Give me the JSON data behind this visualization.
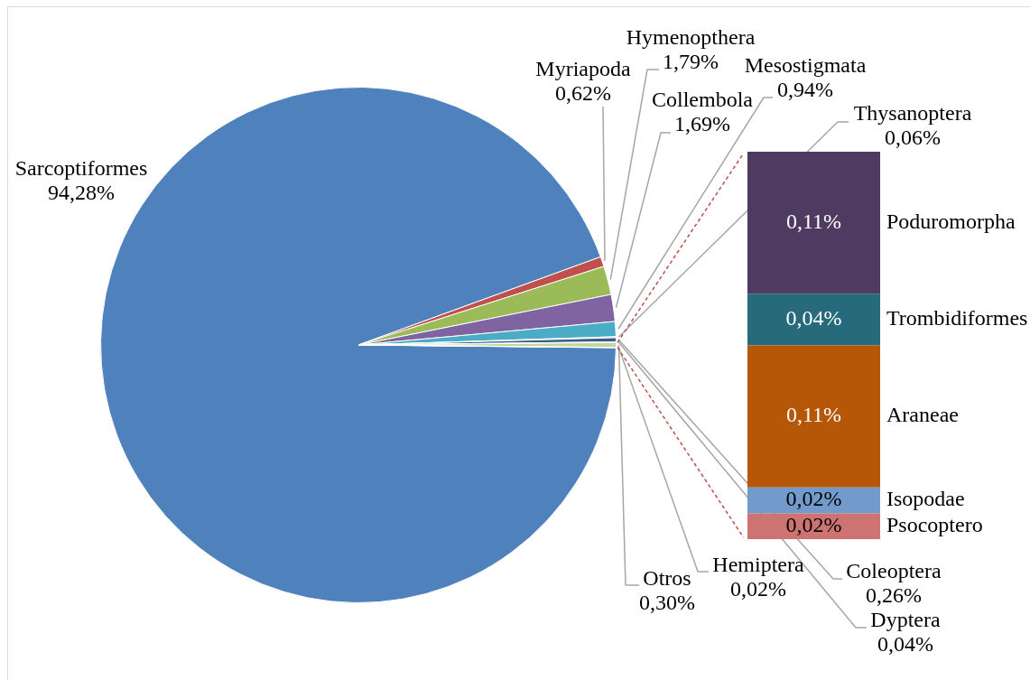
{
  "chart_data": [
    {
      "type": "pie",
      "categories": [
        "Sarcoptiformes",
        "Myriapoda",
        "Hymenopthera",
        "Collembola",
        "Mesostigmata",
        "Thysanoptera",
        "Coleoptera",
        "Dyptera",
        "Otros",
        "Hemiptera"
      ],
      "values": [
        94.28,
        0.62,
        1.79,
        1.69,
        0.94,
        0.06,
        0.26,
        0.04,
        0.3,
        0.02
      ],
      "colors": [
        "#4f81bd",
        "#c0504d",
        "#9bbb59",
        "#8064a2",
        "#4bacc6",
        "#f79646",
        "#385d8a",
        "#8c3836",
        "#c3d69b",
        "#71893f"
      ],
      "value_labels": [
        "94,28%",
        "0,62%",
        "1,79%",
        "1,69%",
        "0,94%",
        "0,06%",
        "0,26%",
        "0,04%",
        "0,30%",
        "0,02%"
      ]
    },
    {
      "type": "bar",
      "stacked": true,
      "categories": [
        null
      ],
      "tick_labels": false,
      "series": [
        {
          "name": "Psocoptero",
          "color": "#cd7371",
          "values": [
            0.02
          ],
          "value_labels": [
            "0,02%"
          ]
        },
        {
          "name": "Isopodae",
          "color": "#729aca",
          "values": [
            0.02
          ],
          "value_labels": [
            "0,02%"
          ]
        },
        {
          "name": "Araneae",
          "color": "#b65708",
          "values": [
            0.11
          ],
          "value_labels": [
            "0,11%"
          ]
        },
        {
          "name": "Trombidiformes",
          "color": "#276a7c",
          "values": [
            0.04
          ],
          "value_labels": [
            "0,04%"
          ]
        },
        {
          "name": "Poduromorpha",
          "color": "#4f3b62",
          "values": [
            0.11
          ],
          "value_labels": [
            "0,11%"
          ]
        }
      ]
    }
  ]
}
